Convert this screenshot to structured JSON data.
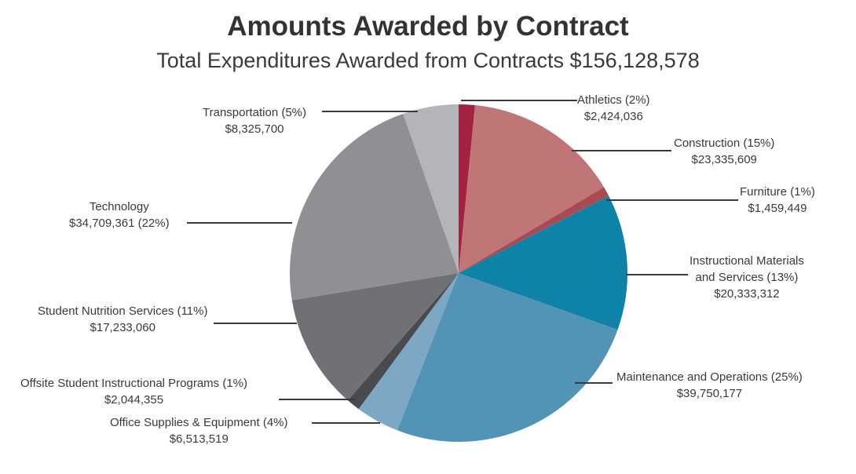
{
  "chart_data": {
    "type": "pie",
    "title": "Amounts Awarded by Contract",
    "subtitle": "Total Expenditures Awarded from Contracts $156,128,578",
    "slices": [
      {
        "label": "Athletics (2%)",
        "amount": "$2,424,036",
        "value": 2424036,
        "color": "#a3223f"
      },
      {
        "label": "Construction (15%)",
        "amount": "$23,335,609",
        "value": 23335609,
        "color": "#c07577"
      },
      {
        "label": "Furniture (1%)",
        "amount": "$1,459,449",
        "value": 1459449,
        "color": "#a84a54"
      },
      {
        "label": "Instructional Materials and Services (13%)",
        "label_line1": "Instructional Materials",
        "label_line2": "and Services (13%)",
        "amount": "$20,333,312",
        "value": 20333312,
        "color": "#0f82a8"
      },
      {
        "label": "Maintenance and Operations (25%)",
        "amount": "$39,750,177",
        "value": 39750177,
        "color": "#5294b5"
      },
      {
        "label": "Office Supplies & Equipment (4%)",
        "amount": "$6,513,519",
        "value": 6513519,
        "color": "#7ca8c6"
      },
      {
        "label": "Offsite Student Instructional Programs (1%)",
        "amount": "$2,044,355",
        "value": 2044355,
        "color": "#4a4b4e"
      },
      {
        "label": "Student Nutrition Services (11%)",
        "amount": "$17,233,060",
        "value": 17233060,
        "color": "#707174"
      },
      {
        "label": "Technology",
        "amount": "$34,709,361 (22%)",
        "value": 34709361,
        "color": "#8f9093"
      },
      {
        "label": "Transportation (5%)",
        "amount": "$8,325,700",
        "value": 8325700,
        "color": "#b4b5b8"
      }
    ]
  }
}
